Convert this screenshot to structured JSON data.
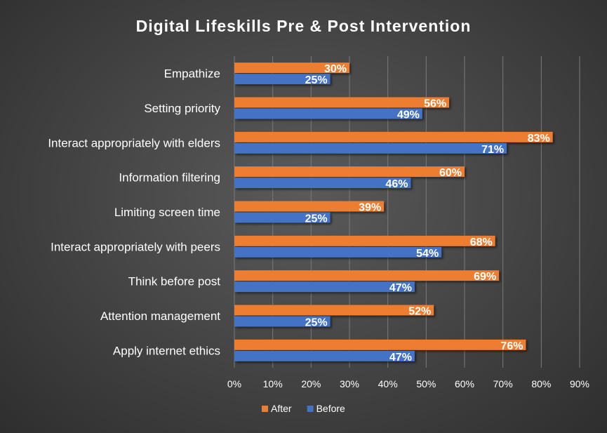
{
  "chart_data": {
    "type": "bar",
    "orientation": "horizontal",
    "title": "Digital Lifeskills Pre & Post Intervention",
    "categories": [
      "Empathize",
      "Setting priority",
      "Interact appropriately with elders",
      "Information filtering",
      "Limiting screen time",
      "Interact appropriately with peers",
      "Think before post",
      "Attention management",
      "Apply internet ethics"
    ],
    "series": [
      {
        "name": "After",
        "color": "#ed7d31",
        "values": [
          30,
          56,
          83,
          60,
          39,
          68,
          69,
          52,
          76
        ],
        "labels": [
          "30%",
          "56%",
          "83%",
          "60%",
          "39%",
          "68%",
          "69%",
          "52%",
          "76%"
        ]
      },
      {
        "name": "Before",
        "color": "#4472c4",
        "values": [
          25,
          49,
          71,
          46,
          25,
          54,
          47,
          25,
          47
        ],
        "labels": [
          "25%",
          "49%",
          "71%",
          "46%",
          "25%",
          "54%",
          "47%",
          "25%",
          "47%"
        ]
      }
    ],
    "xlim": [
      0,
      90
    ],
    "xticks": [
      "0%",
      "10%",
      "20%",
      "30%",
      "40%",
      "50%",
      "60%",
      "70%",
      "80%",
      "90%"
    ],
    "grid": true,
    "legend_position": "bottom"
  }
}
